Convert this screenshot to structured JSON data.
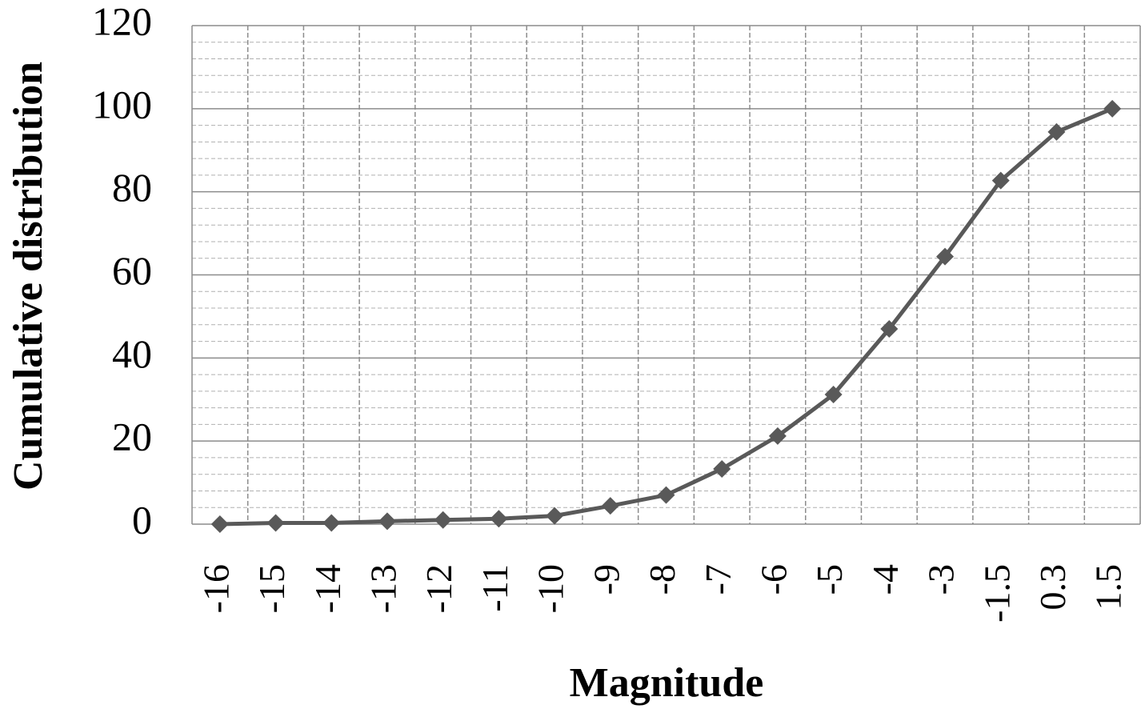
{
  "chart_data": {
    "type": "line",
    "x_label": "Magnitude",
    "y_label": "Cumulative distribution",
    "categories": [
      "-16",
      "-15",
      "-14",
      "-13",
      "-12",
      "-11",
      "-10",
      "-9",
      "-8",
      "-7",
      "-6",
      "-5",
      "-4",
      "-3",
      "-1.5",
      "0.3",
      "1.5"
    ],
    "series": [
      {
        "name": "Cumulative distribution",
        "color": "#595959",
        "values": [
          0,
          0.3,
          0.3,
          0.7,
          1,
          1.3,
          2,
          4.4,
          7,
          13.3,
          21.2,
          31.2,
          47,
          64.4,
          82.7,
          94.4,
          100
        ]
      }
    ],
    "ylim": [
      0,
      120
    ],
    "yticks": [
      0,
      20,
      40,
      60,
      80,
      100,
      120
    ],
    "grid": true,
    "marker": "diamond"
  }
}
